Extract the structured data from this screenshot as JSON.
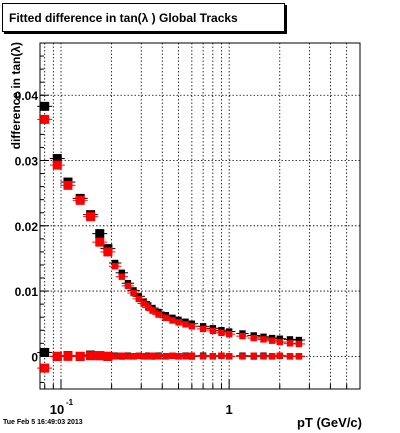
{
  "title": "Fitted difference in tan(λ )  Global Tracks",
  "timestamp": "Tue Feb  5 16:49:03 2013",
  "chart_data": {
    "type": "scatter",
    "title": "Fitted difference in tan(λ )  Global Tracks",
    "xlabel": "pT (GeV/c)",
    "ylabel": "difference in tan(λ)",
    "xscale": "log",
    "xlim": [
      0.075,
      6.0
    ],
    "ylim": [
      -0.005,
      0.048
    ],
    "grid": true,
    "x_tick_labels": [
      {
        "value": 0.1,
        "label": "10",
        "exp": "-1"
      },
      {
        "value": 1,
        "label": "1",
        "exp": ""
      }
    ],
    "y_tick_labels": [
      {
        "value": 0,
        "label": "0"
      },
      {
        "value": 0.01,
        "label": "0.01"
      },
      {
        "value": 0.02,
        "label": "0.02"
      },
      {
        "value": 0.03,
        "label": "0.03"
      },
      {
        "value": 0.04,
        "label": "0.04"
      }
    ],
    "series": [
      {
        "color": "#000000",
        "x": [
          0.08,
          0.095,
          0.11,
          0.13,
          0.15,
          0.17,
          0.19,
          0.21,
          0.23,
          0.25,
          0.27,
          0.29,
          0.31,
          0.33,
          0.35,
          0.38,
          0.42,
          0.46,
          0.5,
          0.55,
          0.6,
          0.7,
          0.8,
          0.9,
          1.0,
          1.2,
          1.4,
          1.6,
          1.8,
          2.0,
          2.3,
          2.6
        ],
        "y": [
          0.0383,
          0.0303,
          0.0267,
          0.0242,
          0.0217,
          0.0188,
          0.0165,
          0.0143,
          0.0128,
          0.0112,
          0.0101,
          0.0092,
          0.0084,
          0.0078,
          0.0074,
          0.0068,
          0.0063,
          0.0059,
          0.0056,
          0.0053,
          0.005,
          0.0046,
          0.0043,
          0.004,
          0.0038,
          0.0035,
          0.0032,
          0.003,
          0.0028,
          0.0027,
          0.0026,
          0.0025
        ]
      },
      {
        "color": "#ff0000",
        "x": [
          0.08,
          0.095,
          0.11,
          0.13,
          0.15,
          0.17,
          0.19,
          0.21,
          0.23,
          0.25,
          0.27,
          0.29,
          0.31,
          0.33,
          0.35,
          0.38,
          0.42,
          0.46,
          0.5,
          0.55,
          0.6,
          0.7,
          0.8,
          0.9,
          1.0,
          1.2,
          1.4,
          1.6,
          1.8,
          2.0,
          2.3,
          2.6
        ],
        "y": [
          0.0363,
          0.0293,
          0.0262,
          0.0239,
          0.0214,
          0.0175,
          0.016,
          0.0138,
          0.0122,
          0.0108,
          0.0097,
          0.0088,
          0.0081,
          0.0075,
          0.007,
          0.0064,
          0.0059,
          0.0055,
          0.0052,
          0.0049,
          0.0046,
          0.0042,
          0.0039,
          0.0036,
          0.0034,
          0.0031,
          0.0028,
          0.0026,
          0.0024,
          0.0022,
          0.002,
          0.0019
        ]
      },
      {
        "color": "#000000",
        "x": [
          0.08,
          0.095,
          0.11,
          0.13,
          0.15,
          0.17,
          0.19,
          0.21,
          0.23,
          0.25,
          0.27,
          0.29,
          0.31,
          0.33,
          0.35,
          0.38,
          0.42,
          0.46,
          0.5,
          0.55,
          0.6,
          0.7,
          0.8,
          0.9,
          1.0,
          1.2,
          1.4,
          1.6,
          1.8,
          2.0,
          2.3,
          2.6
        ],
        "y": [
          0.0006,
          0.0,
          0.0001,
          0.0,
          0.0002,
          0.0001,
          0.0,
          0.0001,
          0.0,
          0.0001,
          0.0,
          0.0001,
          0.0,
          0.0001,
          0.0,
          0.0001,
          0.0,
          0.0001,
          0.0,
          0.0001,
          0.0,
          0.0001,
          0.0,
          0.0001,
          0.0,
          0.0001,
          0.0,
          0.0001,
          0.0,
          0.0001,
          0.0,
          0.0
        ]
      },
      {
        "color": "#ff0000",
        "x": [
          0.08,
          0.095,
          0.11,
          0.13,
          0.15,
          0.17,
          0.19,
          0.21,
          0.23,
          0.25,
          0.27,
          0.29,
          0.31,
          0.33,
          0.35,
          0.38,
          0.42,
          0.46,
          0.5,
          0.55,
          0.6,
          0.7,
          0.8,
          0.9,
          1.0,
          1.2,
          1.4,
          1.6,
          1.8,
          2.0,
          2.3,
          2.6
        ],
        "y": [
          -0.0018,
          0.0,
          0.0,
          0.0,
          0.0001,
          0.0001,
          0.0,
          0.0,
          0.0001,
          0.0,
          0.0,
          0.0001,
          0.0,
          0.0,
          0.0001,
          0.0,
          0.0,
          0.0001,
          0.0,
          0.0,
          0.0001,
          0.0,
          0.0,
          0.0001,
          0.0,
          0.0,
          0.0001,
          0.0,
          0.0,
          0.0001,
          0.0,
          0.0
        ]
      }
    ]
  }
}
